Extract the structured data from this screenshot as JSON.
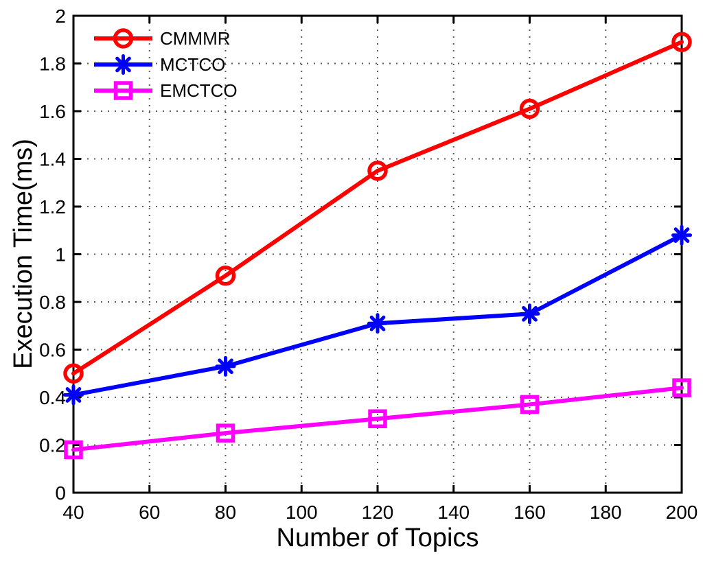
{
  "chart_data": {
    "type": "line",
    "title": "",
    "xlabel": "Number of Topics",
    "ylabel": "Execution Time(ms)",
    "x": [
      40,
      80,
      120,
      160,
      200
    ],
    "xlim": [
      40,
      200
    ],
    "ylim": [
      0,
      2
    ],
    "xticks": [
      40,
      60,
      80,
      100,
      120,
      140,
      160,
      180,
      200
    ],
    "xtick_labels": [
      "40",
      "60",
      "80",
      "100",
      "120",
      "140",
      "160",
      "180",
      "200"
    ],
    "yticks": [
      0,
      0.2,
      0.4,
      0.6,
      0.8,
      1,
      1.2,
      1.4,
      1.6,
      1.8,
      2
    ],
    "ytick_labels": [
      "0",
      "0.2",
      "0.4",
      "0.6",
      "0.8",
      "1",
      "1.2",
      "1.4",
      "1.6",
      "1.8",
      "2"
    ],
    "grid": true,
    "grid_style": "dotted",
    "legend_position": "top-left",
    "series": [
      {
        "name": "CMMMR",
        "color": "#ff0000",
        "marker": "circle",
        "values": [
          0.5,
          0.91,
          1.35,
          1.61,
          1.89
        ]
      },
      {
        "name": "MCTCO",
        "color": "#0000ff",
        "marker": "asterisk",
        "values": [
          0.41,
          0.53,
          0.71,
          0.75,
          1.08
        ]
      },
      {
        "name": "EMCTCO",
        "color": "#ff00ff",
        "marker": "square",
        "values": [
          0.18,
          0.25,
          0.31,
          0.37,
          0.44
        ]
      }
    ],
    "axis_color": "#000000",
    "grid_color": "#5a5a5a",
    "background_color": "#ffffff"
  }
}
